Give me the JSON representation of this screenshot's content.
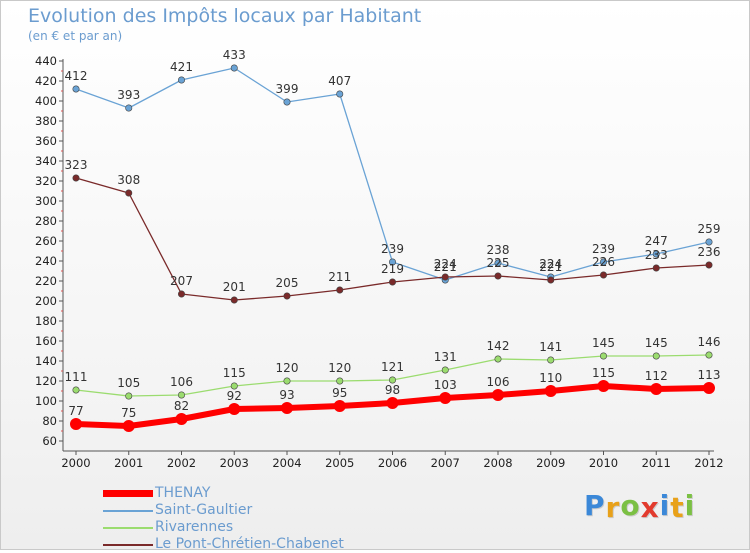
{
  "header": {
    "title": "Evolution des Impôts locaux par Habitant",
    "subtitle": "(en € et par an)"
  },
  "logo": {
    "letters": [
      {
        "ch": "P",
        "color": "#3b88d8"
      },
      {
        "ch": "r",
        "color": "#e8a11a"
      },
      {
        "ch": "o",
        "color": "#7bc043"
      },
      {
        "ch": "x",
        "color": "#e23b2e"
      },
      {
        "ch": "i",
        "color": "#3b88d8"
      },
      {
        "ch": "t",
        "color": "#e8a11a"
      },
      {
        "ch": "i",
        "color": "#7bc043"
      }
    ]
  },
  "chart_data": {
    "type": "line",
    "title": "Evolution des Impôts locaux par Habitant",
    "subtitle": "(en € et par an)",
    "xlabel": "",
    "ylabel": "",
    "x": [
      "2000",
      "2001",
      "2002",
      "2003",
      "2004",
      "2005",
      "2006",
      "2007",
      "2008",
      "2009",
      "2010",
      "2011",
      "2012"
    ],
    "ylim": [
      60,
      440
    ],
    "ystep": 20,
    "grid": false,
    "legend_position": "bottom-left",
    "series": [
      {
        "name": "THENAY",
        "color": "#ff0000",
        "highlight": true,
        "values": [
          77,
          75,
          82,
          92,
          93,
          95,
          98,
          103,
          106,
          110,
          115,
          112,
          113
        ]
      },
      {
        "name": "Saint-Gaultier",
        "color": "#6aa3d5",
        "highlight": false,
        "values": [
          412,
          393,
          421,
          433,
          399,
          407,
          239,
          221,
          238,
          224,
          239,
          247,
          259
        ]
      },
      {
        "name": "Rivarennes",
        "color": "#9bdc6f",
        "highlight": false,
        "values": [
          111,
          105,
          106,
          115,
          120,
          120,
          121,
          131,
          142,
          141,
          145,
          145,
          146
        ]
      },
      {
        "name": "Le Pont-Chrétien-Chabenet",
        "color": "#7a2a2a",
        "highlight": false,
        "values": [
          323,
          308,
          207,
          201,
          205,
          211,
          219,
          224,
          225,
          221,
          226,
          233,
          236
        ]
      }
    ]
  }
}
